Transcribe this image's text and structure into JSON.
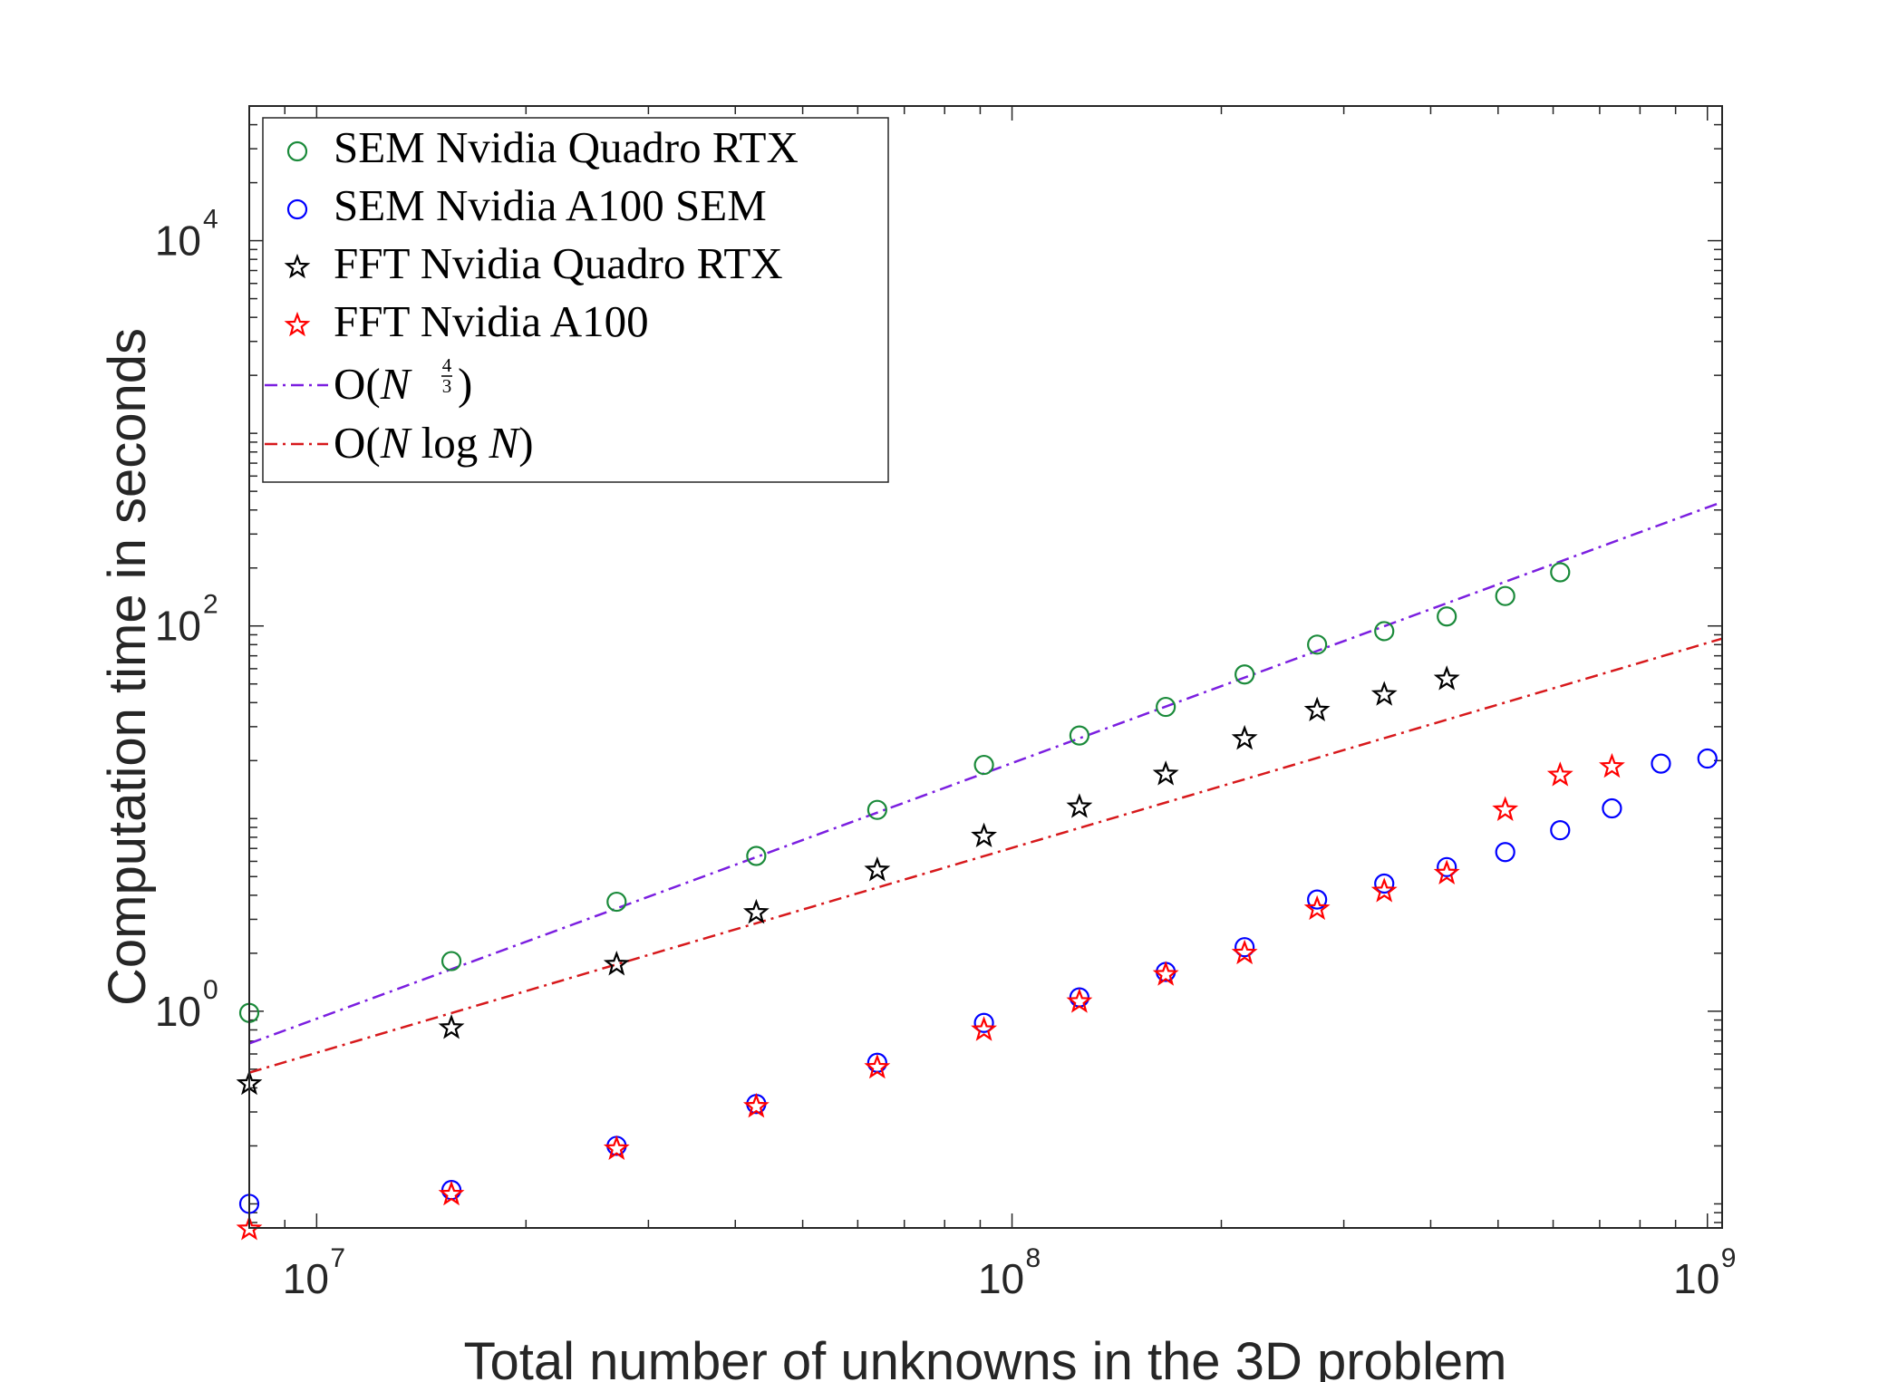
{
  "chart_data": {
    "type": "scatter",
    "title": "",
    "xlabel": "Total number of unknowns in the 3D problem",
    "ylabel": "Computation time in seconds",
    "xscale": "log",
    "yscale": "log",
    "xlim": [
      8000000,
      1050000000
    ],
    "ylim": [
      0.075,
      50000
    ],
    "x_tick_labels": [
      {
        "base": "10",
        "exp": "7",
        "value": 10000000
      },
      {
        "base": "10",
        "exp": "8",
        "value": 100000000
      },
      {
        "base": "10",
        "exp": "9",
        "value": 1000000000
      }
    ],
    "y_tick_labels": [
      {
        "base": "10",
        "exp": "0",
        "value": 1
      },
      {
        "base": "10",
        "exp": "2",
        "value": 100
      },
      {
        "base": "10",
        "exp": "4",
        "value": 10000
      }
    ],
    "grid": false,
    "box": true,
    "legend_position": "top-left",
    "series": [
      {
        "name": "SEM Nvidia Quadro RTX",
        "marker": "circle",
        "color": "#1a8a3a",
        "x": [
          8000000,
          15625000,
          27000000,
          42875000,
          64000000,
          91125000,
          125000000,
          166375000,
          216000000,
          274625000,
          343000000,
          421875000,
          512000000,
          614125000
        ],
        "y": [
          0.98,
          1.82,
          3.7,
          6.4,
          11.1,
          19.0,
          27.0,
          38.0,
          56.0,
          80.0,
          94.0,
          112.0,
          143.0,
          190.0
        ]
      },
      {
        "name": "SEM Nvidia A100 SEM",
        "marker": "circle",
        "color": "#0000ff",
        "x": [
          8000000,
          15625000,
          27000000,
          42875000,
          64000000,
          91125000,
          125000000,
          166375000,
          216000000,
          274625000,
          343000000,
          421875000,
          512000000,
          614125000,
          729000000,
          857375000,
          1000000000
        ],
        "y": [
          0.1,
          0.118,
          0.2,
          0.33,
          0.54,
          0.87,
          1.18,
          1.6,
          2.15,
          3.8,
          4.6,
          5.6,
          6.7,
          8.7,
          11.3,
          19.3,
          20.5
        ]
      },
      {
        "name": "FFT Nvidia Quadro RTX",
        "marker": "star",
        "color": "#000000",
        "x": [
          8000000,
          15625000,
          27000000,
          42875000,
          64000000,
          91125000,
          125000000,
          166375000,
          216000000,
          274625000,
          343000000,
          421875000
        ],
        "y": [
          0.42,
          0.82,
          1.75,
          3.25,
          5.4,
          8.1,
          11.5,
          17.0,
          26.0,
          36.5,
          44.0,
          53.0
        ]
      },
      {
        "name": "FFT Nvidia A100",
        "marker": "star",
        "color": "#ff0000",
        "x": [
          8000000,
          15625000,
          27000000,
          42875000,
          64000000,
          91125000,
          125000000,
          166375000,
          216000000,
          274625000,
          343000000,
          421875000,
          512000000,
          614125000,
          729000000
        ],
        "y": [
          0.074,
          0.112,
          0.193,
          0.32,
          0.51,
          0.8,
          1.12,
          1.55,
          2.0,
          3.4,
          4.2,
          5.2,
          11.1,
          16.8,
          18.6
        ]
      },
      {
        "name": "O(N^{4/3})",
        "style": "dashdot",
        "color": "#7b1fe0",
        "x": [
          8000000,
          1050000000
        ],
        "y": [
          0.68,
          440
        ]
      },
      {
        "name": "O(N log N)",
        "style": "dashdot",
        "color": "#d7191c",
        "x": [
          8000000,
          1050000000
        ],
        "y": [
          0.48,
          86
        ]
      }
    ]
  },
  "legend": {
    "entries": [
      {
        "label": "SEM Nvidia Quadro RTX"
      },
      {
        "label": "SEM Nvidia A100 SEM"
      },
      {
        "label": "FFT Nvidia Quadro RTX"
      },
      {
        "label": "FFT Nvidia A100"
      },
      {
        "prefix": "O(",
        "var": "N",
        "exp_num": "4",
        "exp_den": "3",
        "suffix": ")"
      },
      {
        "prefix": "O(",
        "var": "N",
        "mid": " log ",
        "var2": "N",
        "suffix": ")"
      }
    ]
  }
}
